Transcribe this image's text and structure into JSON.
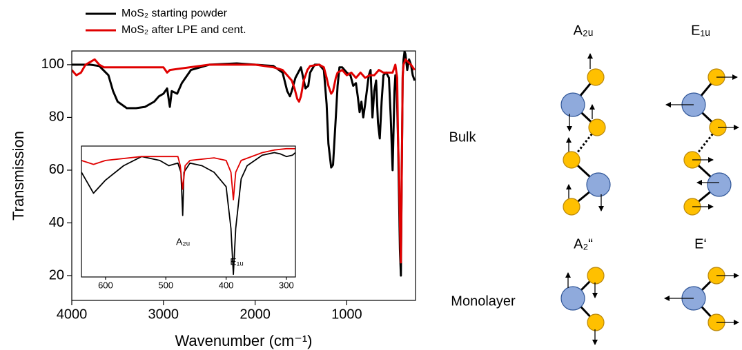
{
  "chart_data": [
    {
      "type": "line",
      "xlabel": "Wavenumber (cm⁻¹)",
      "ylabel": "Transmission",
      "xlim": [
        4000,
        250
      ],
      "ylim": [
        10.6,
        105.2
      ],
      "xticks": [
        4000,
        3000,
        2000,
        1000
      ],
      "yticks": [
        20,
        40,
        60,
        80,
        100
      ],
      "legend": "upper left",
      "series": [
        {
          "name": "MoS₂ starting powder",
          "color": "#000000",
          "x": [
            4000,
            3800,
            3700,
            3600,
            3550,
            3500,
            3400,
            3300,
            3200,
            3100,
            3050,
            3000,
            2960,
            2930,
            2910,
            2850,
            2800,
            2700,
            2500,
            2200,
            2000,
            1800,
            1700,
            1650,
            1620,
            1600,
            1560,
            1500,
            1450,
            1420,
            1400,
            1350,
            1300,
            1250,
            1220,
            1200,
            1170,
            1150,
            1120,
            1100,
            1080,
            1050,
            1000,
            960,
            930,
            900,
            880,
            860,
            840,
            820,
            800,
            760,
            740,
            720,
            700,
            680,
            660,
            640,
            620,
            600,
            570,
            540,
            520,
            500,
            480,
            470,
            460,
            450,
            440,
            430,
            420,
            410,
            400,
            390,
            380,
            370,
            360,
            340,
            320,
            300,
            280,
            260
          ],
          "values": [
            100,
            100,
            99.5,
            96,
            90,
            86,
            83.5,
            83.5,
            84,
            86,
            88,
            89,
            91,
            84,
            90,
            89,
            93,
            98,
            100,
            100.5,
            100,
            99.5,
            97,
            90,
            88,
            90,
            95,
            99,
            91,
            92,
            97,
            100,
            100,
            98,
            85,
            70,
            61,
            62,
            80,
            92,
            99,
            99,
            97,
            96,
            92,
            93,
            88,
            82,
            86,
            80,
            85,
            96,
            98,
            80,
            90,
            94,
            78,
            72,
            86,
            96,
            97,
            95,
            80,
            60,
            90,
            96,
            95,
            85,
            70,
            50,
            30,
            20,
            60,
            95,
            102,
            105,
            104,
            98,
            102,
            100,
            96,
            94
          ]
        },
        {
          "name": "MoS₂ after LPE and cent.",
          "color": "#e00000",
          "x": [
            4000,
            3950,
            3900,
            3850,
            3800,
            3750,
            3700,
            3650,
            3500,
            3000,
            2960,
            2930,
            2500,
            2000,
            1800,
            1700,
            1650,
            1600,
            1570,
            1540,
            1520,
            1500,
            1470,
            1430,
            1400,
            1300,
            1250,
            1220,
            1200,
            1170,
            1150,
            1120,
            1100,
            1050,
            1000,
            950,
            900,
            850,
            800,
            750,
            700,
            650,
            600,
            500,
            470,
            450,
            440,
            430,
            420,
            410,
            400,
            390,
            380,
            360,
            300,
            260
          ],
          "values": [
            98,
            96,
            97,
            100,
            101,
            102,
            100,
            99,
            99,
            99,
            97,
            98,
            100,
            100,
            99,
            98,
            96,
            94,
            91,
            87,
            86,
            88,
            94,
            98,
            99.5,
            100,
            99,
            95,
            92,
            89,
            90,
            95,
            97,
            98,
            96,
            97,
            95,
            97,
            95,
            96,
            96,
            98,
            97,
            97,
            100,
            95,
            70,
            60,
            40,
            25,
            60,
            96,
            100,
            102,
            100,
            98
          ]
        }
      ]
    },
    {
      "type": "line",
      "xlim": [
        640,
        285
      ],
      "ylim": [
        0,
        100
      ],
      "xticks": [
        600,
        500,
        400,
        300
      ],
      "annotations": [
        "A₂ᵤ",
        "E₁ᵤ"
      ],
      "series": [
        {
          "color": "#000000",
          "x": [
            640,
            620,
            600,
            570,
            540,
            510,
            495,
            480,
            475,
            472,
            470,
            460,
            440,
            420,
            400,
            392,
            388,
            384,
            375,
            365,
            340,
            320,
            310,
            300,
            290,
            285
          ],
          "values": [
            80,
            64,
            74,
            85,
            92,
            89,
            85,
            87,
            80,
            47,
            80,
            87,
            85,
            80,
            69,
            37,
            2,
            37,
            75,
            85,
            93,
            95,
            94,
            92,
            93,
            95
          ]
        },
        {
          "color": "#e00000",
          "x": [
            640,
            620,
            600,
            540,
            480,
            476,
            472,
            468,
            460,
            420,
            400,
            392,
            388,
            384,
            375,
            340,
            320,
            300,
            285
          ],
          "values": [
            89,
            86,
            89,
            92,
            92,
            85,
            67,
            85,
            89,
            91,
            89,
            80,
            59,
            80,
            89,
            95,
            97,
            98,
            98
          ]
        }
      ]
    }
  ],
  "diagram": {
    "rows": [
      "Bulk",
      "Monolayer"
    ],
    "modes": [
      "A₂ᵤ",
      "E₁ᵤ",
      "A₂“",
      "E‘"
    ]
  }
}
